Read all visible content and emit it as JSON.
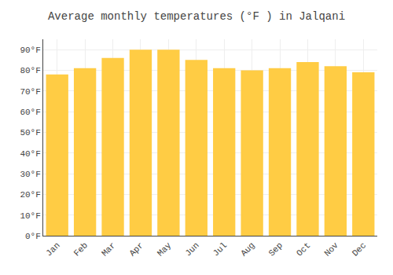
{
  "chart_data": {
    "type": "bar",
    "title": "Average monthly temperatures (°F ) in Jalqani",
    "categories": [
      "Jan",
      "Feb",
      "Mar",
      "Apr",
      "May",
      "Jun",
      "Jul",
      "Aug",
      "Sep",
      "Oct",
      "Nov",
      "Dec"
    ],
    "values": [
      78,
      81,
      86,
      90,
      90,
      85,
      81,
      80,
      81,
      84,
      82,
      79
    ],
    "color": "#FFCC44",
    "ylim": [
      0,
      95
    ],
    "yticks": [
      {
        "value": 0,
        "label": "0°F"
      },
      {
        "value": 10,
        "label": "10°F"
      },
      {
        "value": 20,
        "label": "20°F"
      },
      {
        "value": 30,
        "label": "30°F"
      },
      {
        "value": 40,
        "label": "40°F"
      },
      {
        "value": 50,
        "label": "50°F"
      },
      {
        "value": 60,
        "label": "60°F"
      },
      {
        "value": 70,
        "label": "70°F"
      },
      {
        "value": 80,
        "label": "80°F"
      },
      {
        "value": 90,
        "label": "90°F"
      }
    ],
    "grid": true
  }
}
